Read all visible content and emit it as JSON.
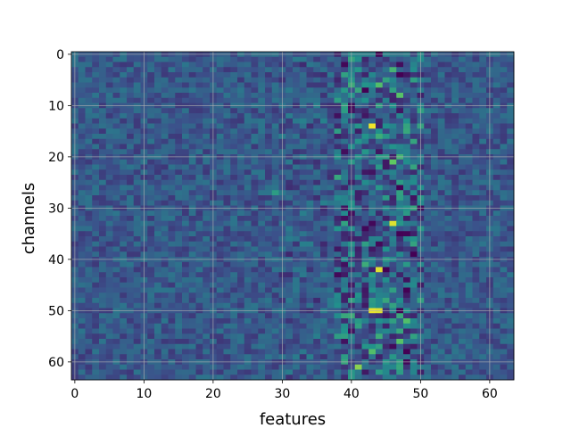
{
  "chart_data": {
    "type": "heatmap",
    "title": "",
    "xlabel": "features",
    "ylabel": "channels",
    "x_range": [
      0,
      64
    ],
    "y_range": [
      0,
      64
    ],
    "y_inverted": true,
    "grid": true,
    "colormap": [
      "#440154",
      "#3b528b",
      "#21918c",
      "#5ec962",
      "#fde725"
    ],
    "value_range": [
      0,
      1
    ],
    "x_ticks": [
      "0",
      "10",
      "20",
      "30",
      "40",
      "50",
      "60"
    ],
    "y_ticks": [
      "0",
      "10",
      "20",
      "30",
      "40",
      "50",
      "60"
    ],
    "rows": 64,
    "cols": 64,
    "background_level": 0.28,
    "hot_cells": [
      {
        "row": 14,
        "col": 43,
        "value": 0.98
      },
      {
        "row": 33,
        "col": 46,
        "value": 0.95
      },
      {
        "row": 42,
        "col": 44,
        "value": 0.95
      },
      {
        "row": 50,
        "col": 43,
        "value": 0.97
      },
      {
        "row": 50,
        "col": 44,
        "value": 0.95
      },
      {
        "row": 61,
        "col": 41,
        "value": 0.82
      },
      {
        "row": 6,
        "col": 44,
        "value": 0.7
      },
      {
        "row": 8,
        "col": 47,
        "value": 0.72
      },
      {
        "row": 3,
        "col": 46,
        "value": 0.65
      },
      {
        "row": 21,
        "col": 46,
        "value": 0.75
      },
      {
        "row": 20,
        "col": 47,
        "value": 0.65
      },
      {
        "row": 56,
        "col": 47,
        "value": 0.72
      },
      {
        "row": 52,
        "col": 48,
        "value": 0.7
      },
      {
        "row": 58,
        "col": 43,
        "value": 0.7
      },
      {
        "row": 27,
        "col": 29,
        "value": 0.55
      },
      {
        "row": 16,
        "col": 44,
        "value": 0.62
      }
    ]
  }
}
